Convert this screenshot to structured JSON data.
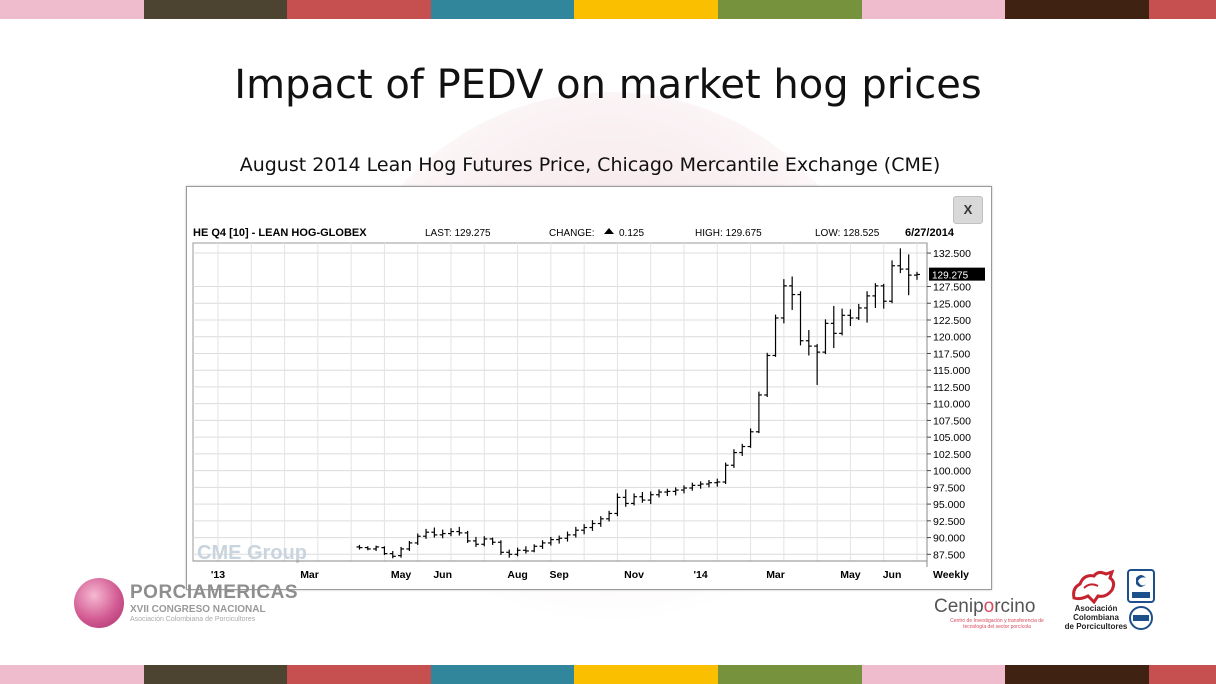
{
  "slide": {
    "title": "Impact of PEDV on market hog prices",
    "subtitle": "August 2014 Lean Hog Futures Price, Chicago Mercantile Exchange (CME)",
    "stripe_colors": [
      "#efbccd",
      "#4c4430",
      "#c5504f",
      "#31869b",
      "#fac000",
      "#76923c",
      "#efbccd",
      "#3f2211",
      "#c5504f"
    ]
  },
  "chart_data": {
    "type": "ohlc",
    "header": {
      "symbol": "HE Q4 [10] - LEAN HOG-GLOBEX",
      "last": "LAST: 129.275",
      "change_label": "CHANGE:",
      "change_value": "0.125",
      "high": "HIGH: 129.675",
      "low": "LOW: 128.525",
      "date": "6/27/2014"
    },
    "close_button": "X",
    "watermark": "CME Group",
    "last_price_label": "129.275",
    "y_ticks": [
      "132.500",
      "127.500",
      "125.000",
      "122.500",
      "120.000",
      "117.500",
      "115.000",
      "112.500",
      "110.000",
      "107.500",
      "105.000",
      "102.500",
      "100.000",
      "97.500",
      "95.000",
      "92.500",
      "90.000",
      "87.500"
    ],
    "y_tick_values": [
      132.5,
      127.5,
      125,
      122.5,
      120,
      117.5,
      115,
      112.5,
      110,
      107.5,
      105,
      102.5,
      100,
      97.5,
      95,
      92.5,
      90,
      87.5
    ],
    "ylim": [
      86.5,
      134
    ],
    "x_labels": [
      {
        "label": "'13",
        "week": 0
      },
      {
        "label": "Mar",
        "week": 11
      },
      {
        "label": "May",
        "week": 22
      },
      {
        "label": "Jun",
        "week": 27
      },
      {
        "label": "Aug",
        "week": 36
      },
      {
        "label": "Sep",
        "week": 41
      },
      {
        "label": "Nov",
        "week": 50
      },
      {
        "label": "'14",
        "week": 58
      },
      {
        "label": "Mar",
        "week": 67
      },
      {
        "label": "May",
        "week": 76
      },
      {
        "label": "Jun",
        "week": 81
      }
    ],
    "period_label": "Weekly",
    "weeks_total": 85,
    "bars": [
      {
        "w": 17,
        "o": 88.6,
        "h": 88.9,
        "l": 88.2,
        "c": 88.5
      },
      {
        "w": 18,
        "o": 88.5,
        "h": 88.7,
        "l": 88.1,
        "c": 88.3
      },
      {
        "w": 19,
        "o": 88.3,
        "h": 88.8,
        "l": 88.0,
        "c": 88.6
      },
      {
        "w": 20,
        "o": 88.5,
        "h": 88.7,
        "l": 87.4,
        "c": 87.6
      },
      {
        "w": 21,
        "o": 87.6,
        "h": 88.0,
        "l": 86.9,
        "c": 87.2
      },
      {
        "w": 22,
        "o": 87.3,
        "h": 88.6,
        "l": 87.0,
        "c": 88.3
      },
      {
        "w": 23,
        "o": 88.3,
        "h": 89.5,
        "l": 88.0,
        "c": 89.2
      },
      {
        "w": 24,
        "o": 89.2,
        "h": 90.6,
        "l": 88.9,
        "c": 90.2
      },
      {
        "w": 25,
        "o": 90.2,
        "h": 91.3,
        "l": 89.8,
        "c": 90.8
      },
      {
        "w": 26,
        "o": 90.8,
        "h": 91.5,
        "l": 90.0,
        "c": 90.4
      },
      {
        "w": 27,
        "o": 90.4,
        "h": 91.2,
        "l": 89.9,
        "c": 90.6
      },
      {
        "w": 28,
        "o": 90.6,
        "h": 91.4,
        "l": 90.2,
        "c": 90.9
      },
      {
        "w": 29,
        "o": 90.9,
        "h": 91.6,
        "l": 90.3,
        "c": 90.7
      },
      {
        "w": 30,
        "o": 90.7,
        "h": 91.0,
        "l": 89.2,
        "c": 89.5
      },
      {
        "w": 31,
        "o": 89.5,
        "h": 90.1,
        "l": 88.6,
        "c": 89.0
      },
      {
        "w": 32,
        "o": 89.0,
        "h": 90.2,
        "l": 88.7,
        "c": 89.8
      },
      {
        "w": 33,
        "o": 89.8,
        "h": 90.0,
        "l": 88.9,
        "c": 89.3
      },
      {
        "w": 34,
        "o": 89.3,
        "h": 89.6,
        "l": 87.4,
        "c": 87.8
      },
      {
        "w": 35,
        "o": 87.8,
        "h": 88.2,
        "l": 87.0,
        "c": 87.5
      },
      {
        "w": 36,
        "o": 87.5,
        "h": 88.5,
        "l": 87.2,
        "c": 88.1
      },
      {
        "w": 37,
        "o": 88.1,
        "h": 88.7,
        "l": 87.6,
        "c": 88.0
      },
      {
        "w": 38,
        "o": 88.0,
        "h": 89.0,
        "l": 87.8,
        "c": 88.7
      },
      {
        "w": 39,
        "o": 88.7,
        "h": 89.6,
        "l": 88.3,
        "c": 89.2
      },
      {
        "w": 40,
        "o": 89.2,
        "h": 90.1,
        "l": 88.8,
        "c": 89.7
      },
      {
        "w": 41,
        "o": 89.7,
        "h": 90.3,
        "l": 89.1,
        "c": 89.9
      },
      {
        "w": 42,
        "o": 89.9,
        "h": 90.9,
        "l": 89.4,
        "c": 90.4
      },
      {
        "w": 43,
        "o": 90.4,
        "h": 91.6,
        "l": 90.0,
        "c": 91.1
      },
      {
        "w": 44,
        "o": 91.1,
        "h": 92.0,
        "l": 90.5,
        "c": 91.5
      },
      {
        "w": 45,
        "o": 91.5,
        "h": 92.6,
        "l": 91.0,
        "c": 92.1
      },
      {
        "w": 46,
        "o": 92.1,
        "h": 93.2,
        "l": 91.6,
        "c": 92.8
      },
      {
        "w": 47,
        "o": 92.8,
        "h": 94.0,
        "l": 92.4,
        "c": 93.6
      },
      {
        "w": 48,
        "o": 93.6,
        "h": 96.6,
        "l": 93.2,
        "c": 96.0
      },
      {
        "w": 49,
        "o": 96.0,
        "h": 97.2,
        "l": 94.6,
        "c": 95.1
      },
      {
        "w": 50,
        "o": 95.1,
        "h": 96.6,
        "l": 94.8,
        "c": 96.1
      },
      {
        "w": 51,
        "o": 96.1,
        "h": 96.8,
        "l": 95.2,
        "c": 95.6
      },
      {
        "w": 52,
        "o": 95.6,
        "h": 96.9,
        "l": 95.0,
        "c": 96.4
      },
      {
        "w": 53,
        "o": 96.4,
        "h": 97.2,
        "l": 96.0,
        "c": 96.8
      },
      {
        "w": 54,
        "o": 96.8,
        "h": 97.3,
        "l": 96.2,
        "c": 96.9
      },
      {
        "w": 55,
        "o": 96.9,
        "h": 97.5,
        "l": 96.3,
        "c": 97.1
      },
      {
        "w": 56,
        "o": 97.1,
        "h": 97.8,
        "l": 96.6,
        "c": 97.4
      },
      {
        "w": 57,
        "o": 97.4,
        "h": 98.2,
        "l": 97.0,
        "c": 97.8
      },
      {
        "w": 58,
        "o": 97.8,
        "h": 98.4,
        "l": 97.3,
        "c": 98.0
      },
      {
        "w": 59,
        "o": 98.0,
        "h": 98.6,
        "l": 97.5,
        "c": 98.2
      },
      {
        "w": 60,
        "o": 98.2,
        "h": 98.8,
        "l": 97.6,
        "c": 98.3
      },
      {
        "w": 61,
        "o": 98.3,
        "h": 101.2,
        "l": 98.0,
        "c": 100.8
      },
      {
        "w": 62,
        "o": 100.8,
        "h": 103.2,
        "l": 100.4,
        "c": 102.7
      },
      {
        "w": 63,
        "o": 102.7,
        "h": 104.0,
        "l": 102.2,
        "c": 103.6
      },
      {
        "w": 64,
        "o": 103.6,
        "h": 106.3,
        "l": 103.4,
        "c": 105.8
      },
      {
        "w": 65,
        "o": 105.8,
        "h": 111.8,
        "l": 105.6,
        "c": 111.3
      },
      {
        "w": 66,
        "o": 111.3,
        "h": 117.6,
        "l": 111.0,
        "c": 117.2
      },
      {
        "w": 67,
        "o": 117.2,
        "h": 123.3,
        "l": 117.0,
        "c": 122.8
      },
      {
        "w": 68,
        "o": 122.8,
        "h": 128.6,
        "l": 122.0,
        "c": 127.6
      },
      {
        "w": 69,
        "o": 127.6,
        "h": 129.0,
        "l": 124.0,
        "c": 126.3
      },
      {
        "w": 70,
        "o": 126.3,
        "h": 126.8,
        "l": 118.7,
        "c": 119.4
      },
      {
        "w": 71,
        "o": 119.4,
        "h": 121.0,
        "l": 117.2,
        "c": 118.6
      },
      {
        "w": 72,
        "o": 118.6,
        "h": 118.9,
        "l": 112.8,
        "c": 117.7
      },
      {
        "w": 73,
        "o": 117.7,
        "h": 122.6,
        "l": 117.4,
        "c": 122.0
      },
      {
        "w": 74,
        "o": 122.0,
        "h": 124.6,
        "l": 118.3,
        "c": 120.5
      },
      {
        "w": 75,
        "o": 120.5,
        "h": 124.2,
        "l": 120.2,
        "c": 123.2
      },
      {
        "w": 76,
        "o": 123.2,
        "h": 124.1,
        "l": 121.6,
        "c": 122.8
      },
      {
        "w": 77,
        "o": 122.8,
        "h": 124.9,
        "l": 122.5,
        "c": 124.3
      },
      {
        "w": 78,
        "o": 124.3,
        "h": 126.8,
        "l": 122.1,
        "c": 126.1
      },
      {
        "w": 79,
        "o": 126.1,
        "h": 128.0,
        "l": 124.3,
        "c": 127.6
      },
      {
        "w": 80,
        "o": 127.6,
        "h": 127.9,
        "l": 124.2,
        "c": 125.3
      },
      {
        "w": 81,
        "o": 125.3,
        "h": 131.4,
        "l": 125.0,
        "c": 130.6
      },
      {
        "w": 82,
        "o": 130.6,
        "h": 133.2,
        "l": 129.5,
        "c": 130.1
      },
      {
        "w": 83,
        "o": 130.1,
        "h": 132.3,
        "l": 126.2,
        "c": 129.2
      },
      {
        "w": 84,
        "o": 129.2,
        "h": 129.7,
        "l": 128.5,
        "c": 129.3
      }
    ]
  },
  "logos": {
    "porciamericas_name": "PORCIAMERICAS",
    "porciamericas_sub1": "XVII CONGRESO NACIONAL",
    "porciamericas_sub2": "Asociación Colombiana de Porcicultores",
    "ceniporcino_a": "Cenip",
    "ceniporcino_o": "o",
    "ceniporcino_b": "rcino",
    "ceniporcino_sub": "Centro de Investigación y transferencia de tecnología del sector porcícola",
    "asociacion_line1": "Asociación",
    "asociacion_line2": "Colombiana",
    "asociacion_line3": "de Porcicultores"
  }
}
